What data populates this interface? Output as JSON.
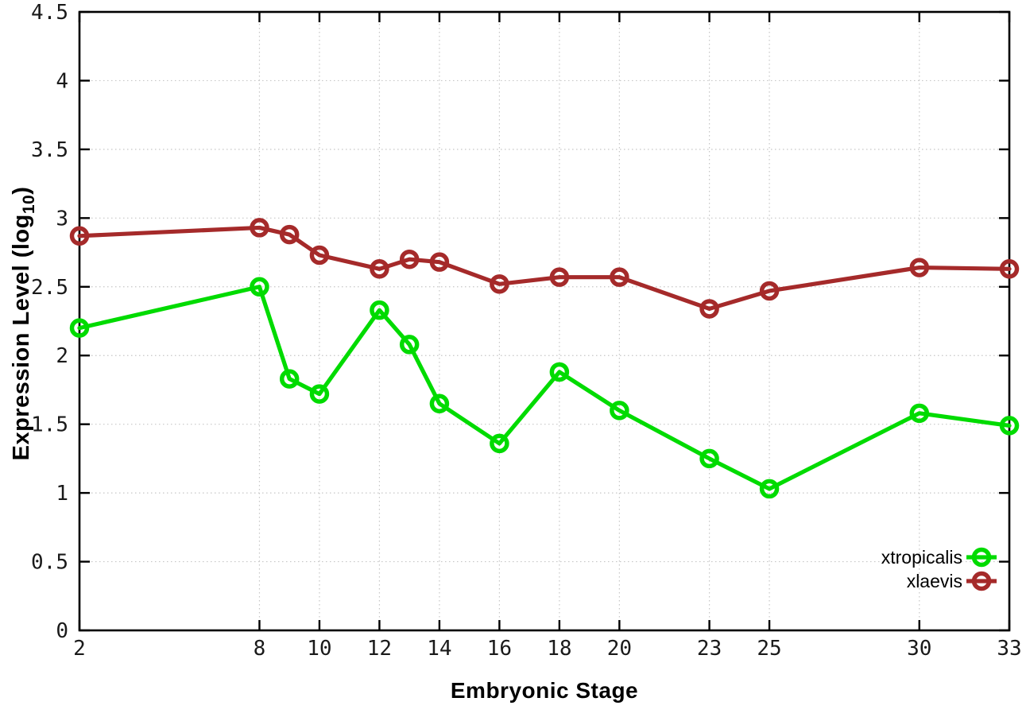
{
  "labels": {
    "xlabel": "Embryonic Stage",
    "ylabel_prefix": "Expression Level (log",
    "ylabel_subscript": "10",
    "ylabel_suffix": ")"
  },
  "colors": {
    "background": "#ffffff",
    "axis": "#000000",
    "grid": "#c6c6c6",
    "text": "#000000",
    "xtropicalis": "#00db00",
    "xlaevis": "#a52a2a"
  },
  "chart_data": {
    "type": "line",
    "title": "",
    "xlabel": "Embryonic Stage",
    "ylabel": "Expression Level (log10)",
    "xlim": [
      2,
      33
    ],
    "ylim": [
      0,
      4.5
    ],
    "grid": true,
    "legend_position": "inside-bottom-right",
    "marker": "open-circle",
    "x": [
      2,
      8,
      9,
      10,
      12,
      13,
      14,
      16,
      18,
      20,
      23,
      25,
      30,
      33
    ],
    "xtick_labels": [
      "2",
      "8",
      "10",
      "12",
      "14",
      "16",
      "18",
      "20",
      "23",
      "25",
      "30",
      "33"
    ],
    "ytick_labels": [
      "0",
      "0.5",
      "1",
      "1.5",
      "2",
      "2.5",
      "3",
      "3.5",
      "4",
      "4.5"
    ],
    "series": [
      {
        "name": "xtropicalis",
        "color": "#00db00",
        "values": [
          2.2,
          2.5,
          1.83,
          1.72,
          2.33,
          2.08,
          1.65,
          1.36,
          1.88,
          1.6,
          1.25,
          1.03,
          1.58,
          1.49
        ]
      },
      {
        "name": "xlaevis",
        "color": "#a52a2a",
        "values": [
          2.87,
          2.93,
          2.88,
          2.73,
          2.63,
          2.7,
          2.68,
          2.52,
          2.57,
          2.57,
          2.34,
          2.47,
          2.64,
          2.63
        ]
      }
    ]
  }
}
